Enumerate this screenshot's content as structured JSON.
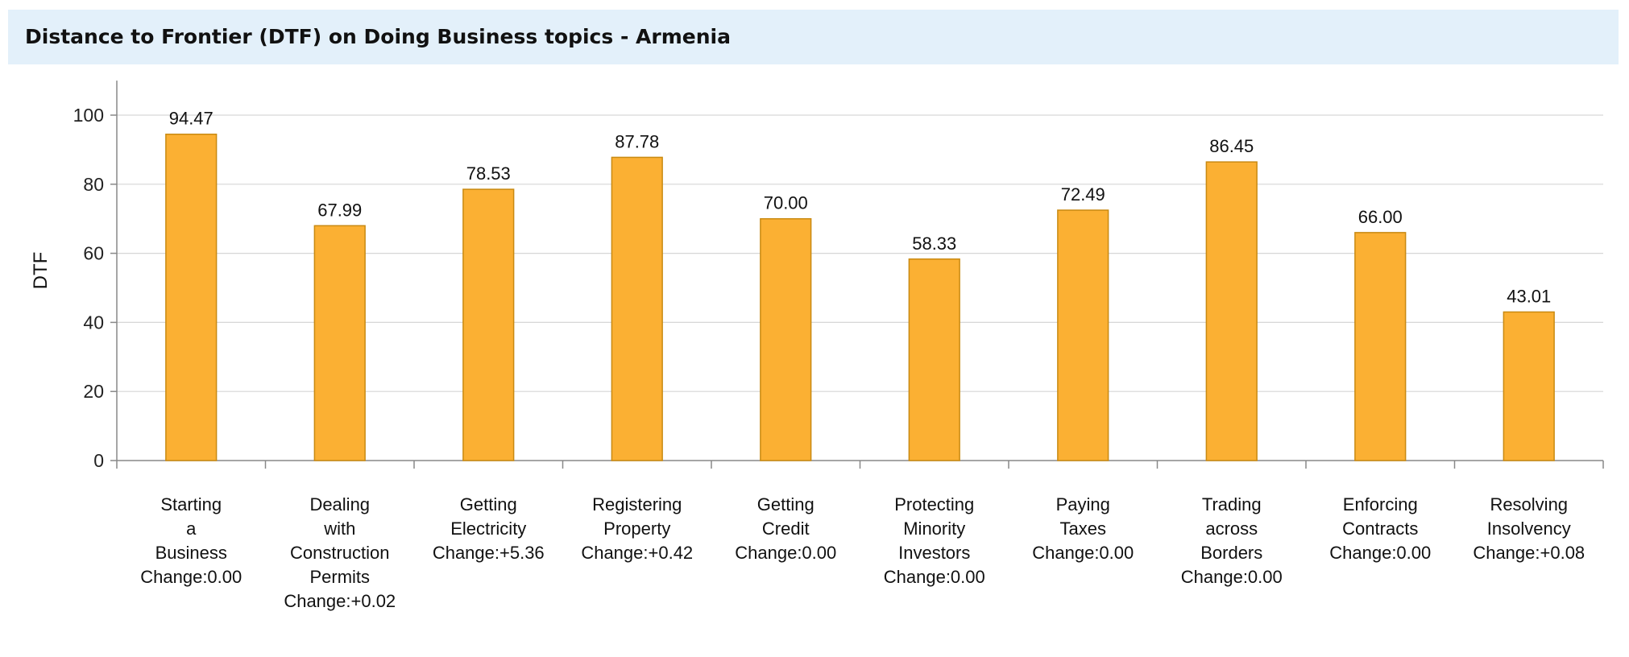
{
  "header": {
    "title": "Distance to Frontier (DTF) on Doing Business topics - Armenia"
  },
  "chart_data": {
    "type": "bar",
    "title": "Distance to Frontier (DTF) on Doing Business topics - Armenia",
    "ylabel": "DTF",
    "xlabel": "",
    "ylim": [
      0,
      110
    ],
    "yticks": [
      0,
      20,
      40,
      60,
      80,
      100
    ],
    "grid": true,
    "bar_color": "#fbb033",
    "bar_edge_color": "#c98a12",
    "categories": [
      [
        "Starting",
        "a",
        "Business",
        "Change:0.00"
      ],
      [
        "Dealing",
        "with",
        "Construction",
        "Permits",
        "Change:+0.02"
      ],
      [
        "Getting",
        "Electricity",
        "Change:+5.36"
      ],
      [
        "Registering",
        "Property",
        "Change:+0.42"
      ],
      [
        "Getting",
        "Credit",
        "Change:0.00"
      ],
      [
        "Protecting",
        "Minority",
        "Investors",
        "Change:0.00"
      ],
      [
        "Paying",
        "Taxes",
        "Change:0.00"
      ],
      [
        "Trading",
        "across",
        "Borders",
        "Change:0.00"
      ],
      [
        "Enforcing",
        "Contracts",
        "Change:0.00"
      ],
      [
        "Resolving",
        "Insolvency",
        "Change:+0.08"
      ]
    ],
    "values": [
      94.47,
      67.99,
      78.53,
      87.78,
      70.0,
      58.33,
      72.49,
      86.45,
      66.0,
      43.01
    ],
    "value_labels": [
      "94.47",
      "67.99",
      "78.53",
      "87.78",
      "70.00",
      "58.33",
      "72.49",
      "86.45",
      "66.00",
      "43.01"
    ]
  }
}
